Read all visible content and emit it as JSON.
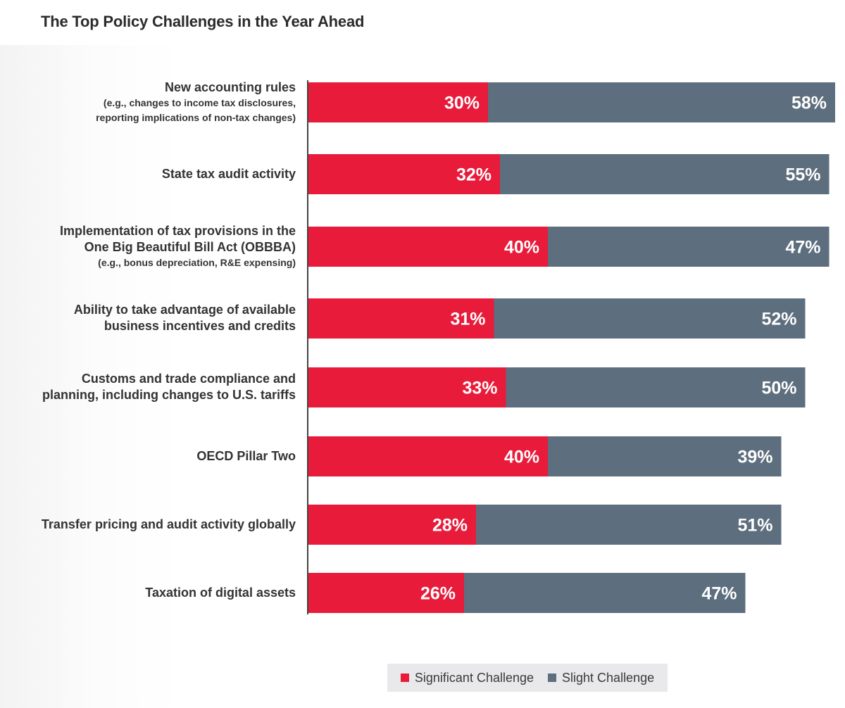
{
  "page": {
    "title": "The Top Policy Challenges in the Year Ahead"
  },
  "chart_data": {
    "type": "bar",
    "orientation": "horizontal",
    "stacked": true,
    "categories": [
      {
        "label": "New accounting rules",
        "note": "(e.g., changes to income tax disclosures, reporting implications of non-tax changes)"
      },
      {
        "label": "State tax audit activity",
        "note": ""
      },
      {
        "label": "Implementation of tax provisions in the One Big Beautiful Bill Act (OBBBA)",
        "note": "(e.g., bonus depreciation, R&E expensing)"
      },
      {
        "label": "Ability to take advantage of available business incentives and credits",
        "note": ""
      },
      {
        "label": "Customs and trade compliance and planning, including changes to U.S. tariffs",
        "note": ""
      },
      {
        "label": "OECD Pillar Two",
        "note": ""
      },
      {
        "label": "Transfer pricing and audit activity globally",
        "note": ""
      },
      {
        "label": "Taxation of digital assets",
        "note": ""
      }
    ],
    "series": [
      {
        "name": "Significant Challenge",
        "color": "#e81b3a",
        "values": [
          30,
          32,
          40,
          31,
          33,
          40,
          28,
          26
        ]
      },
      {
        "name": "Slight Challenge",
        "color": "#5d6e7e",
        "values": [
          58,
          55,
          47,
          52,
          50,
          39,
          51,
          47
        ]
      }
    ],
    "value_suffix": "%",
    "xlim": [
      0,
      88
    ],
    "legend_position": "bottom"
  }
}
